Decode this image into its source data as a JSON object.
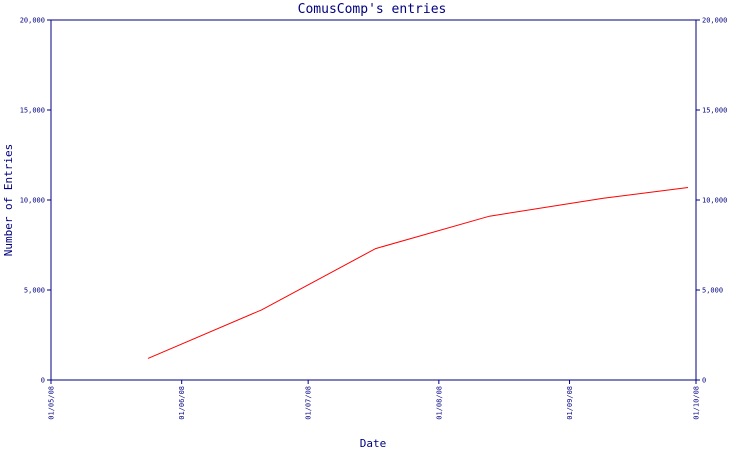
{
  "chart_data": {
    "type": "line",
    "title": "ComusComp's entries",
    "xlabel": "Date",
    "ylabel": "Number of Entries",
    "ylim": [
      0,
      20000
    ],
    "y_ticks": [
      0,
      5000,
      10000,
      15000,
      20000
    ],
    "y_tick_labels": [
      "0",
      "5,000",
      "10,000",
      "15,000",
      "20,000"
    ],
    "x_range": [
      "2008-05-01",
      "2008-10-01"
    ],
    "x_ticks": [
      "2008-05-01",
      "2008-06-01",
      "2008-07-01",
      "2008-08-01",
      "2008-09-01",
      "2008-10-01"
    ],
    "x_tick_labels": [
      "01/05/08",
      "01/06/08",
      "01/07/08",
      "01/08/08",
      "01/09/08",
      "01/10/08"
    ],
    "grid": false,
    "series": [
      {
        "color": "#ff0000",
        "x": [
          "2008-05-24",
          "2008-06-20",
          "2008-07-17",
          "2008-08-13",
          "2008-09-09",
          "2008-10-06"
        ],
        "y": [
          1200,
          3900,
          7300,
          9100,
          10100,
          10900
        ]
      }
    ]
  }
}
